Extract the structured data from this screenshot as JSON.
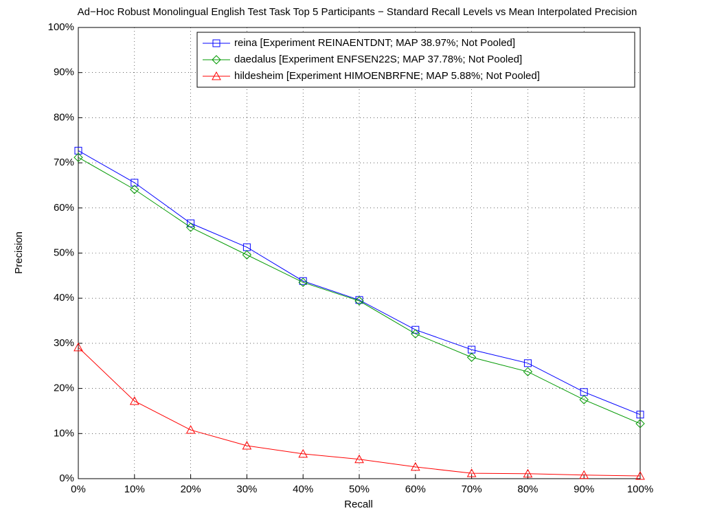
{
  "chart_data": {
    "type": "line",
    "title": "Ad−Hoc Robust Monolingual English Test Task Top 5 Participants − Standard Recall Levels vs Mean Interpolated Precision",
    "x_label": "Recall",
    "y_label": "Precision",
    "x": [
      0,
      10,
      20,
      30,
      40,
      50,
      60,
      70,
      80,
      90,
      100
    ],
    "series": [
      {
        "name": "reina [Experiment REINAENTDNT; MAP 38.97%; Not Pooled]",
        "color": "#0000ff",
        "marker": "square",
        "values": [
          72.7,
          65.6,
          56.6,
          51.3,
          43.8,
          39.6,
          33.0,
          28.6,
          25.6,
          19.2,
          14.2
        ]
      },
      {
        "name": "daedalus [Experiment ENFSEN22S; MAP 37.78%; Not Pooled]",
        "color": "#009900",
        "marker": "diamond",
        "values": [
          71.2,
          64.1,
          55.7,
          49.6,
          43.5,
          39.4,
          32.1,
          26.9,
          23.7,
          17.5,
          12.2
        ]
      },
      {
        "name": "hildesheim [Experiment HIMOENBRFNE; MAP 5.88%; Not Pooled]",
        "color": "#ff0000",
        "marker": "triangle",
        "values": [
          29.1,
          17.2,
          10.8,
          7.3,
          5.5,
          4.3,
          2.6,
          1.2,
          1.1,
          0.8,
          0.6
        ]
      }
    ],
    "xlim": [
      0,
      100
    ],
    "xticks": [
      {
        "value": 0,
        "label": "0%"
      },
      {
        "value": 10,
        "label": "10%"
      },
      {
        "value": 20,
        "label": "20%"
      },
      {
        "value": 30,
        "label": "30%"
      },
      {
        "value": 40,
        "label": "40%"
      },
      {
        "value": 50,
        "label": "50%"
      },
      {
        "value": 60,
        "label": "60%"
      },
      {
        "value": 70,
        "label": "70%"
      },
      {
        "value": 80,
        "label": "80%"
      },
      {
        "value": 90,
        "label": "90%"
      },
      {
        "value": 100,
        "label": "100%"
      }
    ],
    "ylim": [
      0,
      100
    ],
    "yticks": [
      {
        "value": 0,
        "label": "0%"
      },
      {
        "value": 10,
        "label": "10%"
      },
      {
        "value": 20,
        "label": "20%"
      },
      {
        "value": 30,
        "label": "30%"
      },
      {
        "value": 40,
        "label": "40%"
      },
      {
        "value": 50,
        "label": "50%"
      },
      {
        "value": 60,
        "label": "60%"
      },
      {
        "value": 70,
        "label": "70%"
      },
      {
        "value": 80,
        "label": "80%"
      },
      {
        "value": 90,
        "label": "90%"
      },
      {
        "value": 100,
        "label": "100%"
      }
    ],
    "grid": true,
    "legend": "northeast"
  }
}
